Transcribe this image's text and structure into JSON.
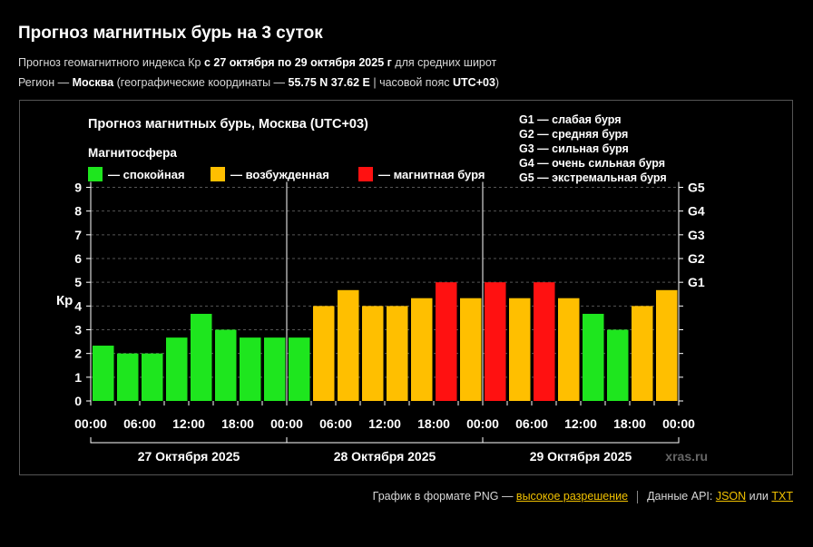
{
  "header": {
    "title": "Прогноз магнитных бурь на 3 суток",
    "sub1_pre": "Прогноз геомагнитного индекса Кр ",
    "sub1_bold": "с 27 октября по 29 октября 2025 г",
    "sub1_post": " для средних широт",
    "sub2_pre": "Регион — ",
    "sub2_city": "Москва",
    "sub2_mid": " (географические координаты — ",
    "sub2_coords": "55.75 N 37.62 E",
    "sub2_mid2": " | часовой пояс ",
    "sub2_tz": "UTC+03",
    "sub2_post": ")"
  },
  "footer": {
    "png_text": "График в формате PNG — ",
    "png_link": "высокое разрешение",
    "api_text": "Данные API: ",
    "json_link": "JSON",
    "or_text": " или ",
    "txt_link": "TXT"
  },
  "colors": {
    "calm": "#1ee61e",
    "excited": "#ffbf00",
    "storm": "#ff1111",
    "background": "#000000"
  },
  "chart_data": {
    "type": "bar",
    "title": "Прогноз магнитных бурь, Москва (UTC+03)",
    "legend_title": "Магнитосфера",
    "legend": [
      {
        "label": "— спокойная",
        "color_key": "calm"
      },
      {
        "label": "— возбужденная",
        "color_key": "excited"
      },
      {
        "label": "— магнитная буря",
        "color_key": "storm"
      }
    ],
    "storm_scale": [
      "G1 — слабая буря",
      "G2 — средняя буря",
      "G3 — сильная буря",
      "G4 — очень сильная буря",
      "G5 — экстремальная буря"
    ],
    "ylabel": "Кр",
    "ylim": [
      0,
      9
    ],
    "y_ticks": [
      "0",
      "1",
      "2",
      "3",
      "4",
      "5",
      "6",
      "7",
      "8",
      "9"
    ],
    "right_ticks": [
      {
        "value": 5,
        "label": "G1"
      },
      {
        "value": 6,
        "label": "G2"
      },
      {
        "value": 7,
        "label": "G3"
      },
      {
        "value": 8,
        "label": "G4"
      },
      {
        "value": 9,
        "label": "G5"
      }
    ],
    "x_ticks": [
      "00:00",
      "06:00",
      "12:00",
      "18:00",
      "00:00",
      "06:00",
      "12:00",
      "18:00",
      "00:00",
      "06:00",
      "12:00",
      "18:00",
      "00:00"
    ],
    "days": [
      "27 Октября 2025",
      "28 Октября 2025",
      "29 Октября 2025"
    ],
    "values": [
      2.33,
      2.0,
      2.0,
      2.67,
      3.67,
      3.0,
      2.67,
      2.67,
      2.67,
      4.0,
      4.67,
      4.0,
      4.0,
      4.33,
      5.0,
      4.33,
      5.0,
      4.33,
      5.0,
      4.33,
      3.67,
      3.0,
      4.0,
      4.67
    ],
    "grid": "horizontal dashed",
    "watermark": "xras.ru"
  }
}
